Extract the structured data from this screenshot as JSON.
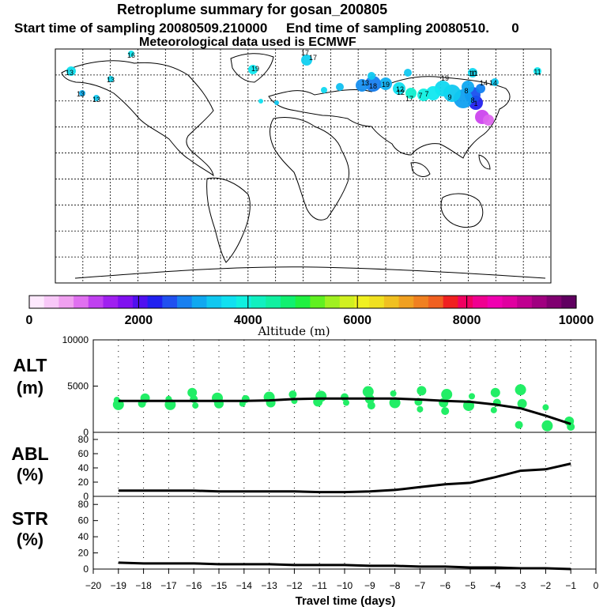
{
  "title": "Retroplume summary for gosan_200805",
  "subtitle": "Start time of sampling 20080509.210000     End time of sampling 20080510.      0",
  "met_note": "Meteorological data used is ECMWF",
  "colorbar": {
    "label": "Altitude (m)",
    "ticks": [
      "0",
      "2000",
      "4000",
      "6000",
      "8000",
      "10000"
    ],
    "colors": [
      "#fde8fd",
      "#f8c8f8",
      "#f0a0f0",
      "#e070f0",
      "#c040f0",
      "#a020f0",
      "#8010f0",
      "#5010f0",
      "#2020f0",
      "#2050f0",
      "#1880f0",
      "#10a8f0",
      "#10c8f0",
      "#10e0f0",
      "#10f0e0",
      "#10f0c0",
      "#10f0a0",
      "#10f070",
      "#20f040",
      "#60f020",
      "#a0f020",
      "#d0f020",
      "#f0f020",
      "#f0e020",
      "#f0c020",
      "#f0a020",
      "#f08020",
      "#f06020",
      "#f02020",
      "#f00060",
      "#f00090",
      "#f000b0",
      "#e000a0",
      "#c00090",
      "#a00080",
      "#800070",
      "#600060"
    ]
  },
  "map": {
    "labels": [
      "17",
      "17",
      "13",
      "13",
      "13",
      "13",
      "13",
      "19",
      "16",
      "18",
      "12",
      "19",
      "17",
      "19",
      "14",
      "14",
      "11",
      "11",
      "7",
      "9",
      "8",
      "8",
      "12",
      "10",
      "1",
      "7"
    ]
  },
  "chart_data": [
    {
      "type": "scatter",
      "panel": "ALT",
      "ylabel": "ALT\n(m)",
      "ylim": [
        0,
        10000
      ],
      "y_ticks": [
        "0",
        "5000",
        "10000"
      ],
      "x": [
        -19,
        -18,
        -17,
        -16,
        -15,
        -14,
        -13,
        -12,
        -11,
        -10,
        -9,
        -8,
        -7,
        -6,
        -5,
        -4,
        -3,
        -2,
        -1
      ],
      "mean_line": [
        3400,
        3400,
        3400,
        3400,
        3400,
        3400,
        3450,
        3600,
        3650,
        3650,
        3650,
        3650,
        3550,
        3400,
        3300,
        3000,
        2600,
        1800,
        900
      ],
      "plume_points": [
        {
          "x": -19,
          "y": 3500
        },
        {
          "x": -19,
          "y": 3000
        },
        {
          "x": -18,
          "y": 3700
        },
        {
          "x": -18,
          "y": 3100
        },
        {
          "x": -17,
          "y": 3600
        },
        {
          "x": -17,
          "y": 3000
        },
        {
          "x": -16,
          "y": 4300
        },
        {
          "x": -16,
          "y": 3600
        },
        {
          "x": -16,
          "y": 2900
        },
        {
          "x": -15,
          "y": 3700
        },
        {
          "x": -15,
          "y": 3100
        },
        {
          "x": -14,
          "y": 3600
        },
        {
          "x": -14,
          "y": 3100
        },
        {
          "x": -13,
          "y": 3800
        },
        {
          "x": -13,
          "y": 3200
        },
        {
          "x": -12,
          "y": 4100
        },
        {
          "x": -12,
          "y": 3400
        },
        {
          "x": -11,
          "y": 3900
        },
        {
          "x": -11,
          "y": 3300
        },
        {
          "x": -10,
          "y": 3800
        },
        {
          "x": -10,
          "y": 3200
        },
        {
          "x": -9,
          "y": 4400
        },
        {
          "x": -9,
          "y": 3600
        },
        {
          "x": -9,
          "y": 2900
        },
        {
          "x": -8,
          "y": 4200
        },
        {
          "x": -8,
          "y": 3200
        },
        {
          "x": -7,
          "y": 4500
        },
        {
          "x": -7,
          "y": 3300
        },
        {
          "x": -7,
          "y": 2500
        },
        {
          "x": -6,
          "y": 4100
        },
        {
          "x": -6,
          "y": 3200
        },
        {
          "x": -6,
          "y": 2300
        },
        {
          "x": -5,
          "y": 3900
        },
        {
          "x": -5,
          "y": 2900
        },
        {
          "x": -4,
          "y": 4300
        },
        {
          "x": -4,
          "y": 3200
        },
        {
          "x": -4,
          "y": 2400
        },
        {
          "x": -3,
          "y": 4600
        },
        {
          "x": -3,
          "y": 3100
        },
        {
          "x": -3,
          "y": 800
        },
        {
          "x": -2,
          "y": 2700
        },
        {
          "x": -2,
          "y": 700
        },
        {
          "x": -1,
          "y": 1200
        },
        {
          "x": -1,
          "y": 600
        }
      ]
    },
    {
      "type": "line",
      "panel": "ABL",
      "ylabel": "ABL\n(%)",
      "ylim": [
        0,
        90
      ],
      "y_ticks": [
        "0",
        "20",
        "40",
        "60",
        "80"
      ],
      "x": [
        -19,
        -18,
        -17,
        -16,
        -15,
        -14,
        -13,
        -12,
        -11,
        -10,
        -9,
        -8,
        -7,
        -6,
        -5,
        -4,
        -3,
        -2,
        -1
      ],
      "values": [
        8,
        8,
        8,
        8,
        7,
        7,
        7,
        7,
        6,
        6,
        7,
        9,
        13,
        17,
        19,
        27,
        36,
        38,
        46
      ]
    },
    {
      "type": "line",
      "panel": "STR",
      "ylabel": "STR\n(%)",
      "ylim": [
        0,
        90
      ],
      "y_ticks": [
        "0",
        "20",
        "40",
        "60",
        "80"
      ],
      "x": [
        -19,
        -18,
        -17,
        -16,
        -15,
        -14,
        -13,
        -12,
        -11,
        -10,
        -9,
        -8,
        -7,
        -6,
        -5,
        -4,
        -3,
        -2,
        -1
      ],
      "values": [
        8,
        7,
        7,
        7,
        6,
        6,
        6,
        5,
        5,
        5,
        4,
        4,
        3,
        3,
        2,
        2,
        1,
        1,
        0
      ]
    }
  ],
  "x_axis": {
    "label": "Travel time (days)",
    "ticks": [
      "−20",
      "−19",
      "−18",
      "−17",
      "−16",
      "−15",
      "−14",
      "−13",
      "−12",
      "−11",
      "−10",
      "−9",
      "−8",
      "−7",
      "−6",
      "−5",
      "−4",
      "−3",
      "−2",
      "−1",
      "0"
    ]
  },
  "colors": {
    "plume": "#22ee66",
    "line": "#000000"
  }
}
